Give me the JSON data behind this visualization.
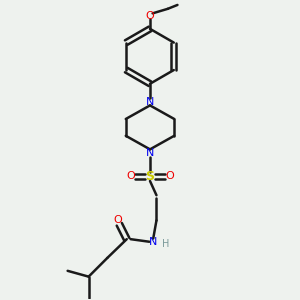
{
  "bg_color": "#eef2ee",
  "line_color": "#1a1a1a",
  "bond_width": 1.8,
  "N_color": "#0000ee",
  "O_color": "#ee0000",
  "S_color": "#cccc00",
  "H_color": "#7a9a9a",
  "figsize": [
    3.0,
    3.0
  ],
  "dpi": 100,
  "xlim": [
    0.1,
    0.9
  ],
  "ylim": [
    0.05,
    0.97
  ]
}
